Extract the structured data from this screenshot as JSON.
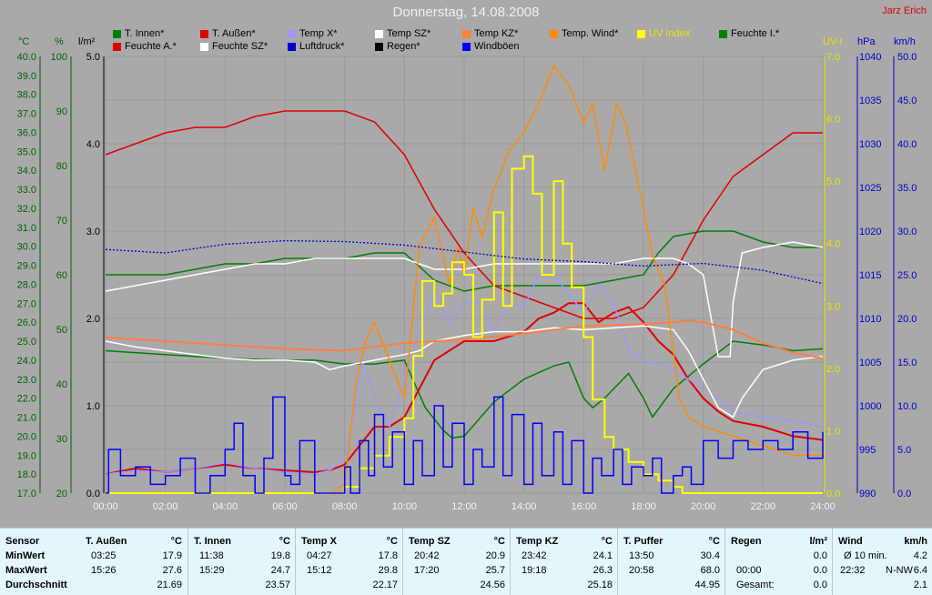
{
  "window": {
    "title": "Donnerstag, 14.08.2008",
    "author": "Jarz Erich"
  },
  "colors": {
    "bg": "#a9a9a9",
    "grid": "#9a9a9a",
    "inner_green": "#008000",
    "outer_red": "#e00000",
    "tempx_lilac": "#9999ff",
    "tempsz_white": "#ffffff",
    "tempkz_orange": "#ff7f3f",
    "tempwind_orange": "#ff8c00",
    "uv_yellow": "#ffff00",
    "pressure_blue": "#0000cc",
    "gust_blue": "#0000ff"
  },
  "legend": [
    {
      "label": "T. Innen*",
      "color": "#008000"
    },
    {
      "label": "T. Außen*",
      "color": "#e00000"
    },
    {
      "label": "Temp X*",
      "color": "#9999ff"
    },
    {
      "label": "Temp SZ*",
      "color": "#ffffff"
    },
    {
      "label": "Temp KZ*",
      "color": "#ff7f3f"
    },
    {
      "label": "Temp. Wind*",
      "color": "#ff8c00"
    },
    {
      "label": "UV Index",
      "color": "#ffff00"
    },
    {
      "label": "Feuchte I.*",
      "color": "#008000"
    },
    {
      "label": "Feuchte A.*",
      "color": "#e00000"
    },
    {
      "label": "Feuchte SZ*",
      "color": "#ffffff"
    },
    {
      "label": "Luftdruck*",
      "color": "#0000cc"
    },
    {
      "label": "Regen*",
      "color": "#000000"
    },
    {
      "label": "Windböen",
      "color": "#0000ff"
    }
  ],
  "axis_units": {
    "temp": "°C",
    "hum": "%",
    "rad": "l/m²",
    "uv": "UV-I",
    "press": "hPa",
    "wind": "km/h"
  },
  "chart_data": {
    "type": "line",
    "x_ticks": [
      "00:00",
      "02:00",
      "04:00",
      "06:00",
      "08:00",
      "10:00",
      "12:00",
      "14:00",
      "16:00",
      "18:00",
      "20:00",
      "22:00",
      "24:00"
    ],
    "x_hours": [
      0,
      2,
      4,
      6,
      8,
      10,
      12,
      14,
      16,
      18,
      20,
      22,
      24
    ],
    "axes": {
      "temp": {
        "ticks": [
          "17.0",
          "18.0",
          "19.0",
          "20.0",
          "21.0",
          "22.0",
          "23.0",
          "24.0",
          "25.0",
          "26.0",
          "27.0",
          "28.0",
          "29.0",
          "30.0",
          "31.0",
          "32.0",
          "33.0",
          "34.0",
          "35.0",
          "36.0",
          "37.0",
          "38.0",
          "39.0",
          "40.0"
        ],
        "range": [
          17,
          40
        ]
      },
      "hum": {
        "ticks": [
          "20",
          "30",
          "40",
          "50",
          "60",
          "70",
          "80",
          "90",
          "100"
        ],
        "range": [
          20,
          100
        ]
      },
      "rad": {
        "ticks": [
          "0.0",
          "1.0",
          "2.0",
          "3.0",
          "4.0",
          "5.0"
        ],
        "range": [
          0,
          5
        ]
      },
      "uv": {
        "ticks": [
          "0.0",
          "1.0",
          "2.0",
          "3.0",
          "4.0",
          "5.0",
          "6.0",
          "7.0"
        ],
        "range": [
          0,
          7
        ]
      },
      "press": {
        "ticks": [
          "990",
          "995",
          "1000",
          "1005",
          "1010",
          "1015",
          "1020",
          "1025",
          "1030",
          "1035",
          "1040"
        ],
        "range": [
          990,
          1040
        ]
      },
      "wind": {
        "ticks": [
          "0.0",
          "5.0",
          "10.0",
          "15.0",
          "20.0",
          "25.0",
          "30.0",
          "35.0",
          "40.0",
          "45.0",
          "50.0"
        ],
        "range": [
          0,
          50
        ]
      }
    },
    "series": [
      {
        "name": "T. Innen*",
        "axis": "temp",
        "color": "#008000",
        "x": [
          0,
          2,
          4,
          6,
          7,
          8,
          9,
          10,
          10.7,
          11.3,
          11.6,
          12,
          13,
          14,
          15,
          15.5,
          16,
          16.3,
          16.7,
          17.5,
          18,
          18.3,
          19,
          20,
          21,
          22,
          23,
          24
        ],
        "y": [
          24.5,
          24.3,
          24.1,
          24.0,
          24.0,
          23.8,
          23.8,
          24.0,
          21.5,
          20.3,
          19.9,
          20.0,
          21.8,
          23.0,
          23.7,
          23.9,
          22.0,
          21.5,
          22.0,
          23.3,
          22.0,
          21.0,
          22.5,
          23.8,
          25.0,
          24.8,
          24.5,
          24.6
        ]
      },
      {
        "name": "Feuchte I.*",
        "axis": "hum",
        "color": "#008000",
        "x": [
          0,
          1,
          2,
          3,
          4,
          5,
          6,
          7,
          8,
          9,
          10,
          11,
          12,
          13,
          14,
          15,
          16,
          17,
          18,
          18.5,
          19,
          20,
          21,
          22,
          23,
          24
        ],
        "y": [
          60,
          60,
          60,
          61,
          62,
          62,
          63,
          63,
          63,
          64,
          64,
          59,
          57,
          58,
          58,
          58,
          58,
          59,
          60,
          64,
          67,
          68,
          68,
          66,
          65,
          65
        ]
      },
      {
        "name": "T. Außen*",
        "axis": "temp",
        "color": "#e00000",
        "x": [
          0,
          1,
          2,
          3,
          4,
          5,
          6,
          7,
          7.5,
          8,
          8.5,
          9,
          9.5,
          10,
          10.5,
          11,
          11.5,
          12,
          13,
          14,
          14.5,
          15,
          15.5,
          16,
          16.5,
          17,
          17.5,
          18,
          18.5,
          19,
          19.5,
          20,
          20.5,
          21,
          22,
          23,
          24
        ],
        "y": [
          18.0,
          18.3,
          18.1,
          18.3,
          18.5,
          18.3,
          18.2,
          18.1,
          18.2,
          18.5,
          19.5,
          20.5,
          20.5,
          21.0,
          22.5,
          24.0,
          24.5,
          25.0,
          25.0,
          25.5,
          26.2,
          26.5,
          27.0,
          27.0,
          26.0,
          26.5,
          26.8,
          26.0,
          25.0,
          24.3,
          23.0,
          22.0,
          21.3,
          20.8,
          20.5,
          20.0,
          19.8
        ]
      },
      {
        "name": "Feuchte A.*",
        "axis": "hum",
        "color": "#e00000",
        "x": [
          0,
          1,
          2,
          3,
          4,
          5,
          6,
          7,
          8,
          9,
          10,
          11,
          12,
          13,
          14,
          15,
          16,
          17,
          18,
          19,
          20,
          21,
          22,
          23,
          24
        ],
        "y": [
          82,
          84,
          86,
          87,
          87,
          89,
          90,
          90,
          90,
          88,
          82,
          72,
          64,
          58,
          56,
          54,
          52,
          52,
          54,
          60,
          70,
          78,
          82,
          86,
          86
        ]
      },
      {
        "name": "Temp X*",
        "axis": "temp",
        "color": "#9999ff",
        "x": [
          0,
          1,
          2,
          3,
          4,
          5,
          6,
          7,
          7.5,
          8,
          8.3,
          8.6,
          9,
          9.5,
          10,
          10.5,
          11,
          11.5,
          12,
          12.5,
          13,
          13.5,
          14,
          14.5,
          15,
          15.5,
          16,
          16.5,
          17,
          17.5,
          18,
          18.5,
          19,
          19.5,
          20,
          20.5,
          21,
          22,
          23,
          24
        ],
        "y": [
          18.0,
          18.2,
          18.1,
          18.3,
          18.6,
          18.3,
          18.1,
          18.0,
          18.2,
          18.8,
          21.0,
          24.0,
          22.0,
          20.5,
          23.0,
          25.5,
          27.5,
          26.0,
          27.0,
          27.0,
          25.5,
          27.0,
          26.8,
          28.5,
          28.5,
          27.5,
          26.5,
          28.0,
          27.0,
          24.5,
          24.0,
          23.8,
          23.5,
          23.0,
          22.5,
          22.0,
          21.3,
          21.0,
          20.8,
          20.5
        ]
      },
      {
        "name": "Temp SZ*",
        "axis": "temp",
        "color": "#ffffff",
        "x": [
          0,
          1,
          2,
          3,
          4,
          5,
          6,
          7,
          7.5,
          8,
          9,
          10,
          10.5,
          11,
          12,
          13,
          14,
          15,
          16,
          17,
          18,
          19,
          19.5,
          20,
          20.5,
          21,
          21.3,
          22,
          23,
          24
        ],
        "y": [
          25.0,
          24.7,
          24.5,
          24.3,
          24.1,
          24.0,
          24.0,
          23.9,
          23.5,
          23.7,
          24.0,
          24.3,
          24.5,
          25.0,
          25.3,
          25.5,
          25.5,
          25.7,
          25.6,
          25.7,
          25.8,
          25.6,
          24.5,
          23.0,
          21.5,
          21.0,
          22.0,
          23.5,
          24.0,
          24.2
        ]
      },
      {
        "name": "Feuchte SZ*",
        "axis": "hum",
        "color": "#ffffff",
        "x": [
          0,
          1,
          2,
          3,
          4,
          5,
          6,
          7,
          8,
          9,
          10,
          11,
          12,
          13,
          14,
          15,
          16,
          17,
          18,
          19,
          19.5,
          20,
          20.5,
          20.9,
          21,
          21.3,
          22,
          23,
          24
        ],
        "y": [
          57,
          58,
          59,
          60,
          61,
          62,
          62,
          63,
          63,
          63,
          63,
          61,
          61,
          62,
          62,
          62,
          62,
          62,
          63,
          63,
          62,
          60,
          45,
          45,
          55,
          64,
          65,
          66,
          65
        ]
      },
      {
        "name": "Temp KZ*",
        "axis": "temp",
        "color": "#ff7f3f",
        "x": [
          0,
          2,
          4,
          6,
          8,
          10,
          12,
          14,
          16,
          18,
          19,
          19.5,
          20,
          21,
          22,
          23,
          24
        ],
        "y": [
          25.2,
          25.0,
          24.8,
          24.6,
          24.5,
          24.9,
          25.1,
          25.4,
          25.8,
          25.9,
          26.0,
          26.1,
          26.0,
          25.6,
          24.9,
          24.4,
          24.1
        ]
      },
      {
        "name": "Temp. Wind*",
        "axis": "temp",
        "color": "#ff8c00",
        "x": [
          0,
          7.6,
          8,
          8.4,
          8.7,
          9,
          9.5,
          10,
          10.2,
          10.5,
          11,
          11.5,
          11.8,
          12,
          12.3,
          12.6,
          13,
          13.5,
          14,
          14.5,
          15,
          15.5,
          16,
          16.3,
          16.7,
          17.1,
          17.4,
          17.8,
          18,
          18.3,
          18.7,
          19,
          19.2,
          19.5,
          20,
          21,
          22,
          23,
          24
        ],
        "y": [
          17.0,
          17.0,
          17.5,
          23.0,
          25.0,
          26.0,
          24.0,
          22.0,
          25.0,
          30.0,
          31.5,
          28.0,
          30.0,
          28.5,
          32.0,
          30.5,
          33.0,
          35.0,
          36.0,
          37.5,
          39.5,
          38.5,
          36.5,
          37.5,
          34.0,
          37.5,
          36.5,
          33.5,
          32.0,
          29.5,
          28.0,
          24.5,
          22.0,
          21.0,
          20.5,
          20.0,
          19.5,
          19.0,
          19.0
        ]
      },
      {
        "name": "UV Index",
        "axis": "uv",
        "color": "#ffff00",
        "x": [
          0,
          8,
          8.5,
          9,
          9.5,
          10,
          10.3,
          10.6,
          11,
          11.3,
          11.6,
          12,
          12.3,
          12.6,
          13,
          13.3,
          13.6,
          14,
          14.3,
          14.6,
          15,
          15.3,
          15.6,
          16,
          16.3,
          16.7,
          17,
          17.5,
          18,
          18.5,
          19,
          19.3,
          24
        ],
        "y": [
          0.0,
          0.1,
          0.4,
          0.6,
          0.9,
          1.2,
          2.2,
          3.4,
          3.0,
          3.2,
          3.7,
          3.5,
          2.5,
          3.1,
          4.5,
          3.0,
          5.2,
          5.4,
          4.8,
          3.5,
          5.0,
          4.0,
          3.3,
          2.5,
          1.5,
          0.9,
          0.7,
          0.5,
          0.3,
          0.2,
          0.1,
          0.0,
          0.0
        ]
      },
      {
        "name": "Luftdruck*",
        "axis": "press",
        "color": "#0000cc",
        "x": [
          0,
          2,
          4,
          6,
          8,
          10,
          12,
          14,
          16,
          18,
          20,
          22,
          24
        ],
        "y": [
          1017.9,
          1017.5,
          1018.5,
          1018.9,
          1018.8,
          1018.4,
          1017.6,
          1016.8,
          1016.5,
          1016.0,
          1016.3,
          1015.5,
          1014.0
        ]
      },
      {
        "name": "Windböen",
        "axis": "wind",
        "color": "#0000ff",
        "x": [
          0,
          0.1,
          0.5,
          1,
          1.5,
          2,
          2.5,
          3,
          3.5,
          4,
          4.3,
          4.6,
          5,
          5.3,
          5.6,
          6,
          6.2,
          6.5,
          7,
          7.5,
          8,
          8.2,
          8.5,
          8.8,
          9,
          9.3,
          9.6,
          10,
          10.3,
          10.6,
          11,
          11.3,
          11.6,
          12,
          12.3,
          12.6,
          13,
          13.3,
          13.6,
          14,
          14.3,
          14.6,
          15,
          15.3,
          15.6,
          16,
          16.3,
          16.6,
          17,
          17.3,
          17.6,
          18,
          18.3,
          18.6,
          19,
          19.3,
          19.6,
          20,
          20.5,
          21,
          21.5,
          22,
          22.5,
          23,
          23.5,
          24
        ],
        "y": [
          0,
          5,
          2,
          3,
          1,
          2,
          4,
          0,
          2,
          5,
          8,
          2,
          0,
          4,
          11,
          2,
          1,
          6,
          0,
          0,
          3,
          0,
          6,
          2,
          9,
          3,
          7,
          1,
          6,
          2,
          10,
          3,
          8,
          1,
          5,
          3,
          11,
          2,
          9,
          1,
          8,
          2,
          7,
          1,
          6,
          0,
          4,
          2,
          5,
          1,
          3,
          2,
          4,
          0,
          2,
          3,
          1,
          6,
          4,
          6,
          5,
          6,
          5,
          7,
          4,
          7
        ]
      }
    ]
  },
  "stats": {
    "row_labels": {
      "sensor": "Sensor",
      "min": "MinWert",
      "max": "MaxWert",
      "avg": "Durchschnitt"
    },
    "columns": [
      {
        "name": "T. Außen",
        "unit": "°C",
        "min_time": "03:25",
        "min_val": "17.9",
        "max_time": "15:26",
        "max_val": "27.6",
        "avg": "21.69"
      },
      {
        "name": "T. Innen",
        "unit": "°C",
        "min_time": "11:38",
        "min_val": "19.8",
        "max_time": "15:29",
        "max_val": "24.7",
        "avg": "23.57"
      },
      {
        "name": "Temp X",
        "unit": "°C",
        "min_time": "04:27",
        "min_val": "17.8",
        "max_time": "15:12",
        "max_val": "29.8",
        "avg": "22.17"
      },
      {
        "name": "Temp SZ",
        "unit": "°C",
        "min_time": "20:42",
        "min_val": "20.9",
        "max_time": "17:20",
        "max_val": "25.7",
        "avg": "24.56"
      },
      {
        "name": "Temp KZ",
        "unit": "°C",
        "min_time": "23:42",
        "min_val": "24.1",
        "max_time": "19:18",
        "max_val": "26.3",
        "avg": "25.18"
      },
      {
        "name": "T. Puffer",
        "unit": "°C",
        "min_time": "13:50",
        "min_val": "30.4",
        "max_time": "20:58",
        "max_val": "68.0",
        "avg": "44.95"
      }
    ],
    "rain": {
      "name": "Regen",
      "unit": "l/m²",
      "time": "00:00",
      "val": "0.0",
      "val2": "0.0",
      "total_label": "Gesamt:",
      "total": "0.0"
    },
    "wind": {
      "name": "Wind",
      "unit": "km/h",
      "avg_label": "Ø 10 min.",
      "avg": "4.2",
      "max_time": "22:32",
      "max_dir": "N-NW",
      "max_val": "6.4",
      "day_avg": "2.1"
    }
  }
}
